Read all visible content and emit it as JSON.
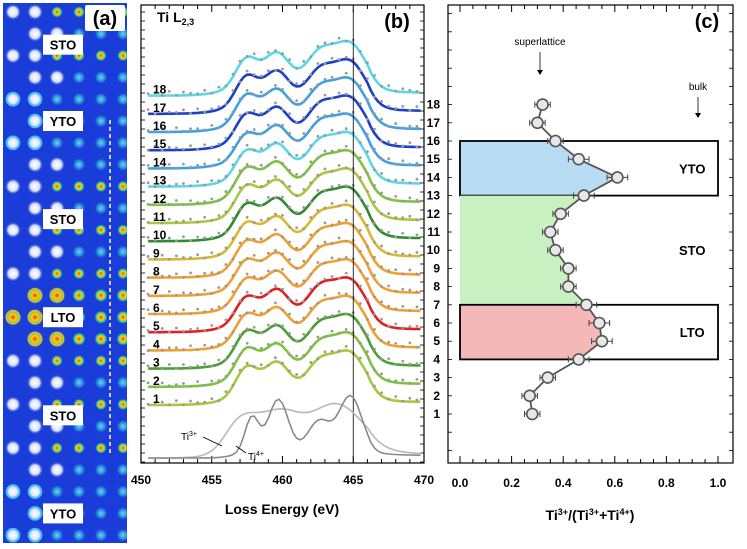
{
  "panel_a": {
    "letter": "(a)",
    "layers": [
      {
        "label": "STO",
        "row_start": 0,
        "row_count": 4
      },
      {
        "label": "YTO",
        "row_start": 4,
        "row_count": 3
      },
      {
        "label": "STO",
        "row_start": 7,
        "row_count": 6
      },
      {
        "label": "LTO",
        "row_start": 13,
        "row_count": 3
      },
      {
        "label": "STO",
        "row_start": 16,
        "row_count": 6
      },
      {
        "label": "YTO",
        "row_start": 22,
        "row_count": 3
      }
    ],
    "colors": {
      "background": "#1a3cd8",
      "white_column": "#e8ecff",
      "ring_yto": "#38c8ff",
      "ring_lto": "#ffb020",
      "dot_hot": "#ffd000"
    }
  },
  "chart_data": [
    {
      "type": "line",
      "panel": "(b)",
      "title": "Ti L2,3",
      "title_main": "Ti L",
      "title_sub": "2,3",
      "xlabel": "Loss Energy (eV)",
      "ylabel": "",
      "xlim": [
        450,
        470
      ],
      "xticks": [
        450,
        455,
        460,
        465,
        470
      ],
      "vertical_line_x": 465,
      "spectrum_peaks_ev": [
        457.4,
        459.6,
        462.6,
        464.8
      ],
      "series": [
        {
          "name": "1",
          "ti3_fraction": 0.28,
          "color": "#a8c840"
        },
        {
          "name": "2",
          "ti3_fraction": 0.27,
          "color": "#7fc242"
        },
        {
          "name": "3",
          "ti3_fraction": 0.34,
          "color": "#4a9e34"
        },
        {
          "name": "4",
          "ti3_fraction": 0.46,
          "color": "#f0a030"
        },
        {
          "name": "5",
          "ti3_fraction": 0.55,
          "color": "#e02020"
        },
        {
          "name": "6",
          "ti3_fraction": 0.54,
          "color": "#f0a030"
        },
        {
          "name": "7",
          "ti3_fraction": 0.49,
          "color": "#f0a030"
        },
        {
          "name": "8",
          "ti3_fraction": 0.42,
          "color": "#f0a030"
        },
        {
          "name": "9",
          "ti3_fraction": 0.42,
          "color": "#d8b830"
        },
        {
          "name": "10",
          "ti3_fraction": 0.37,
          "color": "#2e8b2e"
        },
        {
          "name": "11",
          "ti3_fraction": 0.35,
          "color": "#a8c840"
        },
        {
          "name": "12",
          "ti3_fraction": 0.39,
          "color": "#7fc242"
        },
        {
          "name": "13",
          "ti3_fraction": 0.48,
          "color": "#5ad8e8"
        },
        {
          "name": "14",
          "ti3_fraction": 0.61,
          "color": "#40a0e0"
        },
        {
          "name": "15",
          "ti3_fraction": 0.46,
          "color": "#1c40c8"
        },
        {
          "name": "16",
          "ti3_fraction": 0.37,
          "color": "#40a0e0"
        },
        {
          "name": "17",
          "ti3_fraction": 0.3,
          "color": "#1c40c8"
        },
        {
          "name": "18",
          "ti3_fraction": 0.32,
          "color": "#5ad8e8"
        }
      ],
      "references": [
        {
          "name": "Ti3+",
          "color": "#b8b8b8"
        },
        {
          "name": "Ti4+",
          "color": "#8a8a8a"
        }
      ]
    },
    {
      "type": "scatter",
      "panel": "(c)",
      "title": "",
      "xlabel": "Ti3+/(Ti3++Ti4+)",
      "xlabel_parts": {
        "a": "Ti",
        "b": "3+",
        "c": "/(Ti",
        "d": "3+",
        "e": "+Ti",
        "f": "4+",
        "g": ")"
      },
      "ylabel": "",
      "xlim": [
        0.0,
        1.0
      ],
      "xticks": [
        0.0,
        0.2,
        0.4,
        0.6,
        0.8,
        1.0
      ],
      "xtick_labels": [
        "0.0",
        "0.2",
        "0.4",
        "0.6",
        "0.8",
        "1.0"
      ],
      "ylim": [
        -1,
        20
      ],
      "yticks": [
        1,
        2,
        3,
        4,
        5,
        6,
        7,
        8,
        9,
        10,
        11,
        12,
        13,
        14,
        15,
        16,
        17,
        18
      ],
      "points": [
        {
          "layer": 1,
          "x": 0.28,
          "err": 0.03
        },
        {
          "layer": 2,
          "x": 0.27,
          "err": 0.03
        },
        {
          "layer": 3,
          "x": 0.34,
          "err": 0.03
        },
        {
          "layer": 4,
          "x": 0.46,
          "err": 0.04
        },
        {
          "layer": 5,
          "x": 0.55,
          "err": 0.04
        },
        {
          "layer": 6,
          "x": 0.54,
          "err": 0.04
        },
        {
          "layer": 7,
          "x": 0.49,
          "err": 0.04
        },
        {
          "layer": 8,
          "x": 0.42,
          "err": 0.03
        },
        {
          "layer": 9,
          "x": 0.42,
          "err": 0.03
        },
        {
          "layer": 10,
          "x": 0.37,
          "err": 0.03
        },
        {
          "layer": 11,
          "x": 0.35,
          "err": 0.03
        },
        {
          "layer": 12,
          "x": 0.39,
          "err": 0.03
        },
        {
          "layer": 13,
          "x": 0.48,
          "err": 0.04
        },
        {
          "layer": 14,
          "x": 0.61,
          "err": 0.04
        },
        {
          "layer": 15,
          "x": 0.46,
          "err": 0.04
        },
        {
          "layer": 16,
          "x": 0.37,
          "err": 0.03
        },
        {
          "layer": 17,
          "x": 0.3,
          "err": 0.03
        },
        {
          "layer": 18,
          "x": 0.32,
          "err": 0.03
        }
      ],
      "bulk_regions": [
        {
          "label": "YTO",
          "layer_from": 13,
          "layer_to": 16,
          "bulk_value": 1.0,
          "color": "#b8dcf4"
        },
        {
          "label": "STO",
          "layer_from": 7,
          "layer_to": 13,
          "bulk_value": 0.0,
          "color": "#c8f0c0"
        },
        {
          "label": "LTO",
          "layer_from": 4,
          "layer_to": 7,
          "bulk_value": 1.0,
          "color": "#f4b8b8"
        }
      ],
      "annotations": {
        "superlattice": "superlattice",
        "bulk": "bulk"
      }
    }
  ]
}
